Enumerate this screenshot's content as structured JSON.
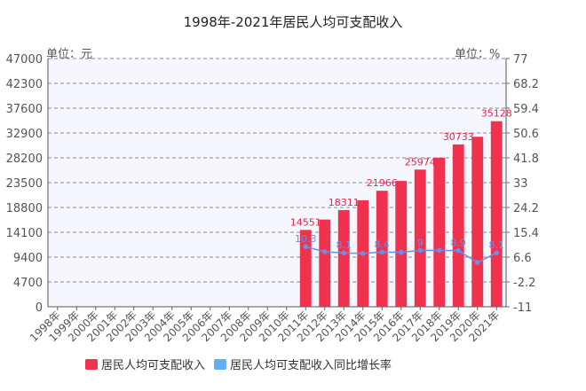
{
  "chart_data": {
    "type": "bar",
    "title": "1998年-2021年居民人均可支配收入",
    "left_unit": "单位：元",
    "right_unit": "单位：%",
    "categories": [
      "1998年",
      "1999年",
      "2000年",
      "2001年",
      "2002年",
      "2003年",
      "2004年",
      "2005年",
      "2006年",
      "2007年",
      "2008年",
      "2009年",
      "2010年",
      "2011年",
      "2012年",
      "2013年",
      "2014年",
      "2015年",
      "2016年",
      "2017年",
      "2018年",
      "2019年",
      "2020年",
      "2021年"
    ],
    "y_ticks": [
      "0",
      "4700",
      "9400",
      "14100",
      "18800",
      "23500",
      "28200",
      "32900",
      "37600",
      "42300",
      "47000"
    ],
    "y2_ticks": [
      "-11",
      "-2.2",
      "6.6",
      "15.4",
      "24.2",
      "33",
      "41.8",
      "50.6",
      "59.4",
      "68.2",
      "77"
    ],
    "ylim": [
      0,
      47000
    ],
    "y2lim": [
      -11,
      77
    ],
    "grid": true,
    "legend_position": "bottom",
    "series": [
      {
        "name": "居民人均可支配收入",
        "type": "bar",
        "color": "#f0324e",
        "values": [
          null,
          null,
          null,
          null,
          null,
          null,
          null,
          null,
          null,
          null,
          null,
          null,
          null,
          14551,
          16510,
          18311,
          20167,
          21966,
          23821,
          25974,
          28228,
          30733,
          32189,
          35128
        ]
      },
      {
        "name": "居民人均可支配收入同比增长率",
        "type": "line",
        "color": "#6c8fe6",
        "legend_color": "#62b0f0",
        "values": [
          null,
          null,
          null,
          null,
          null,
          null,
          null,
          null,
          null,
          null,
          null,
          null,
          null,
          10.3,
          8.5,
          8.1,
          7.9,
          8.4,
          8.3,
          9,
          9,
          8.9,
          4.7,
          8.1
        ]
      }
    ],
    "data_labels": {
      "bar": [
        {
          "index": 13,
          "text": "14551"
        },
        {
          "index": 15,
          "text": "18311"
        },
        {
          "index": 17,
          "text": "21966"
        },
        {
          "index": 19,
          "text": "25974"
        },
        {
          "index": 21,
          "text": "30733"
        },
        {
          "index": 23,
          "text": "35128"
        }
      ],
      "line": [
        {
          "index": 13,
          "text": "10.3"
        },
        {
          "index": 15,
          "text": "8.1"
        },
        {
          "index": 17,
          "text": "8.4"
        },
        {
          "index": 19,
          "text": "9"
        },
        {
          "index": 21,
          "text": "8.9"
        },
        {
          "index": 23,
          "text": "8.1"
        }
      ]
    }
  }
}
